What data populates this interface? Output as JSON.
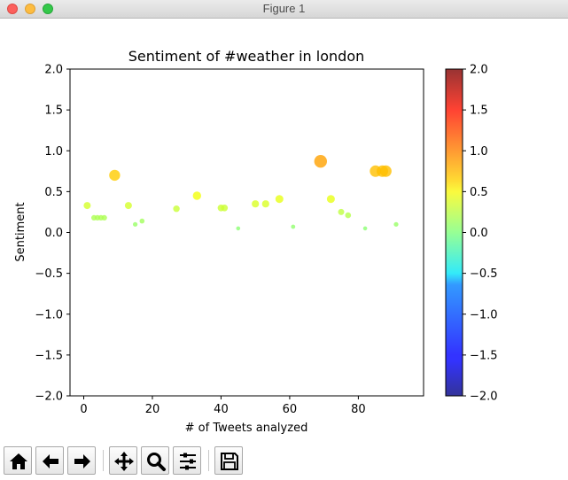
{
  "window": {
    "title": "Figure 1"
  },
  "toolbar": {
    "buttons": [
      {
        "name": "home-button",
        "icon": "home-icon"
      },
      {
        "name": "back-button",
        "icon": "arrow-left-icon"
      },
      {
        "name": "forward-button",
        "icon": "arrow-right-icon"
      },
      {
        "name": "pan-button",
        "icon": "move-icon"
      },
      {
        "name": "zoom-button",
        "icon": "magnifier-icon"
      },
      {
        "name": "configure-subplots-button",
        "icon": "sliders-icon"
      },
      {
        "name": "save-button",
        "icon": "floppy-disk-icon"
      }
    ]
  },
  "chart_data": {
    "type": "scatter",
    "title": "Sentiment of #weather in london",
    "xlabel": "# of Tweets analyzed",
    "ylabel": "Sentiment",
    "xlim": [
      -4,
      99
    ],
    "ylim": [
      -2.0,
      2.0
    ],
    "xticks": [
      "0",
      "20",
      "40",
      "60",
      "80"
    ],
    "xtick_values": [
      0,
      20,
      40,
      60,
      80
    ],
    "yticks": [
      "2.0",
      "1.5",
      "1.0",
      "0.5",
      "0.0",
      "−0.5",
      "−1.0",
      "−1.5",
      "−2.0"
    ],
    "ytick_values": [
      2.0,
      1.5,
      1.0,
      0.5,
      0.0,
      -0.5,
      -1.0,
      -1.5,
      -2.0
    ],
    "colormap": "jet",
    "color_range": [
      -2.0,
      2.0
    ],
    "marker_size_encodes": "sentiment magnitude",
    "grid": false,
    "colorbar": {
      "ticks": [
        "2.0",
        "1.5",
        "1.0",
        "0.5",
        "0.0",
        "−0.5",
        "−1.0",
        "−1.5",
        "−2.0"
      ],
      "tick_values": [
        2.0,
        1.5,
        1.0,
        0.5,
        0.0,
        -0.5,
        -1.0,
        -1.5,
        -2.0
      ]
    },
    "points": [
      {
        "x": 1,
        "y": 0.33
      },
      {
        "x": 3,
        "y": 0.18
      },
      {
        "x": 4,
        "y": 0.18
      },
      {
        "x": 5,
        "y": 0.18
      },
      {
        "x": 6,
        "y": 0.18
      },
      {
        "x": 9,
        "y": 0.7
      },
      {
        "x": 13,
        "y": 0.33
      },
      {
        "x": 15,
        "y": 0.1
      },
      {
        "x": 17,
        "y": 0.14
      },
      {
        "x": 27,
        "y": 0.29
      },
      {
        "x": 33,
        "y": 0.45
      },
      {
        "x": 40,
        "y": 0.3
      },
      {
        "x": 41,
        "y": 0.3
      },
      {
        "x": 45,
        "y": 0.05
      },
      {
        "x": 50,
        "y": 0.35
      },
      {
        "x": 53,
        "y": 0.35
      },
      {
        "x": 57,
        "y": 0.41
      },
      {
        "x": 61,
        "y": 0.07
      },
      {
        "x": 69,
        "y": 0.87
      },
      {
        "x": 72,
        "y": 0.41
      },
      {
        "x": 75,
        "y": 0.25
      },
      {
        "x": 77,
        "y": 0.21
      },
      {
        "x": 82,
        "y": 0.05
      },
      {
        "x": 85,
        "y": 0.75
      },
      {
        "x": 87,
        "y": 0.75
      },
      {
        "x": 88,
        "y": 0.75
      },
      {
        "x": 91,
        "y": 0.1
      }
    ]
  }
}
